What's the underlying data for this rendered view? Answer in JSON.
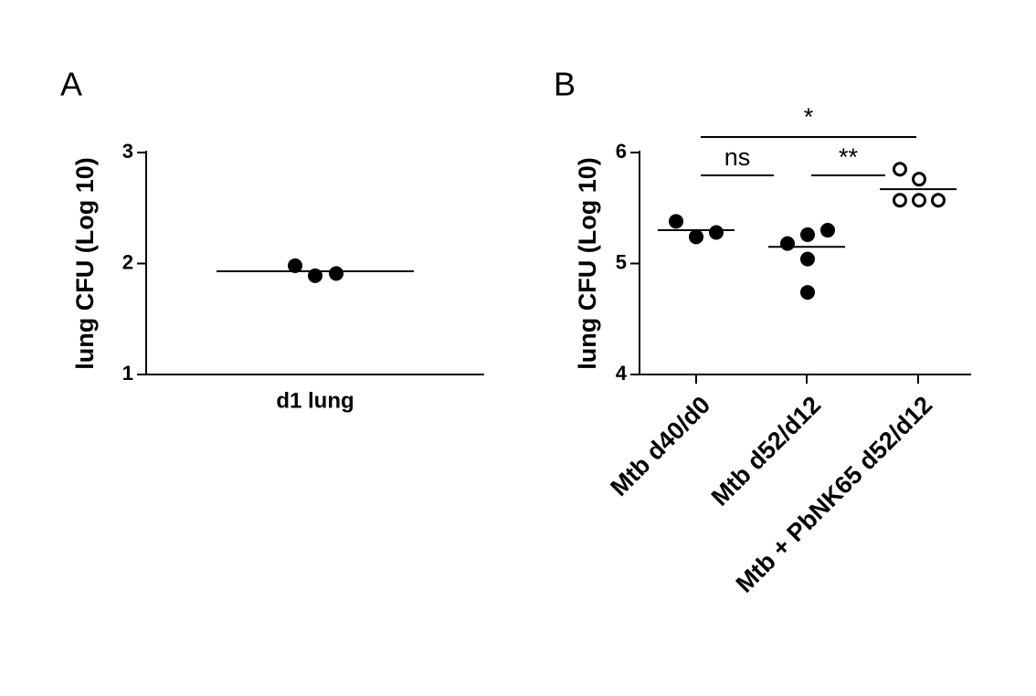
{
  "chart_data": [
    {
      "type": "dotplot",
      "label": "A",
      "ylabel": "lung CFU (Log 10)",
      "categories": [
        "d1 lung"
      ],
      "values": [
        [
          1.98,
          1.89,
          1.91
        ]
      ],
      "means": [
        1.93
      ],
      "markers": [
        "filled"
      ],
      "ylim": [
        1,
        3
      ],
      "yticks": [
        1,
        2,
        3
      ],
      "annotations": []
    },
    {
      "type": "dotplot",
      "label": "B",
      "ylabel": "lung CFU (Log 10)",
      "categories": [
        "Mtb d40/d0",
        "Mtb d52/d12",
        "Mtb + PbNK65 d52/d12"
      ],
      "values": [
        [
          5.38,
          5.24,
          5.28
        ],
        [
          5.18,
          5.26,
          5.3,
          5.04,
          4.74
        ],
        [
          5.85,
          5.76,
          5.57,
          5.57,
          5.57
        ]
      ],
      "means": [
        5.3,
        5.15,
        5.67
      ],
      "markers": [
        "filled",
        "filled",
        "open"
      ],
      "ylim": [
        4,
        6
      ],
      "yticks": [
        4,
        5,
        6
      ],
      "annotations": [
        {
          "text": "ns",
          "from": 0,
          "to": 1
        },
        {
          "text": "**",
          "from": 1,
          "to": 2
        },
        {
          "text": "*",
          "from": 0,
          "to": 2
        }
      ]
    }
  ]
}
